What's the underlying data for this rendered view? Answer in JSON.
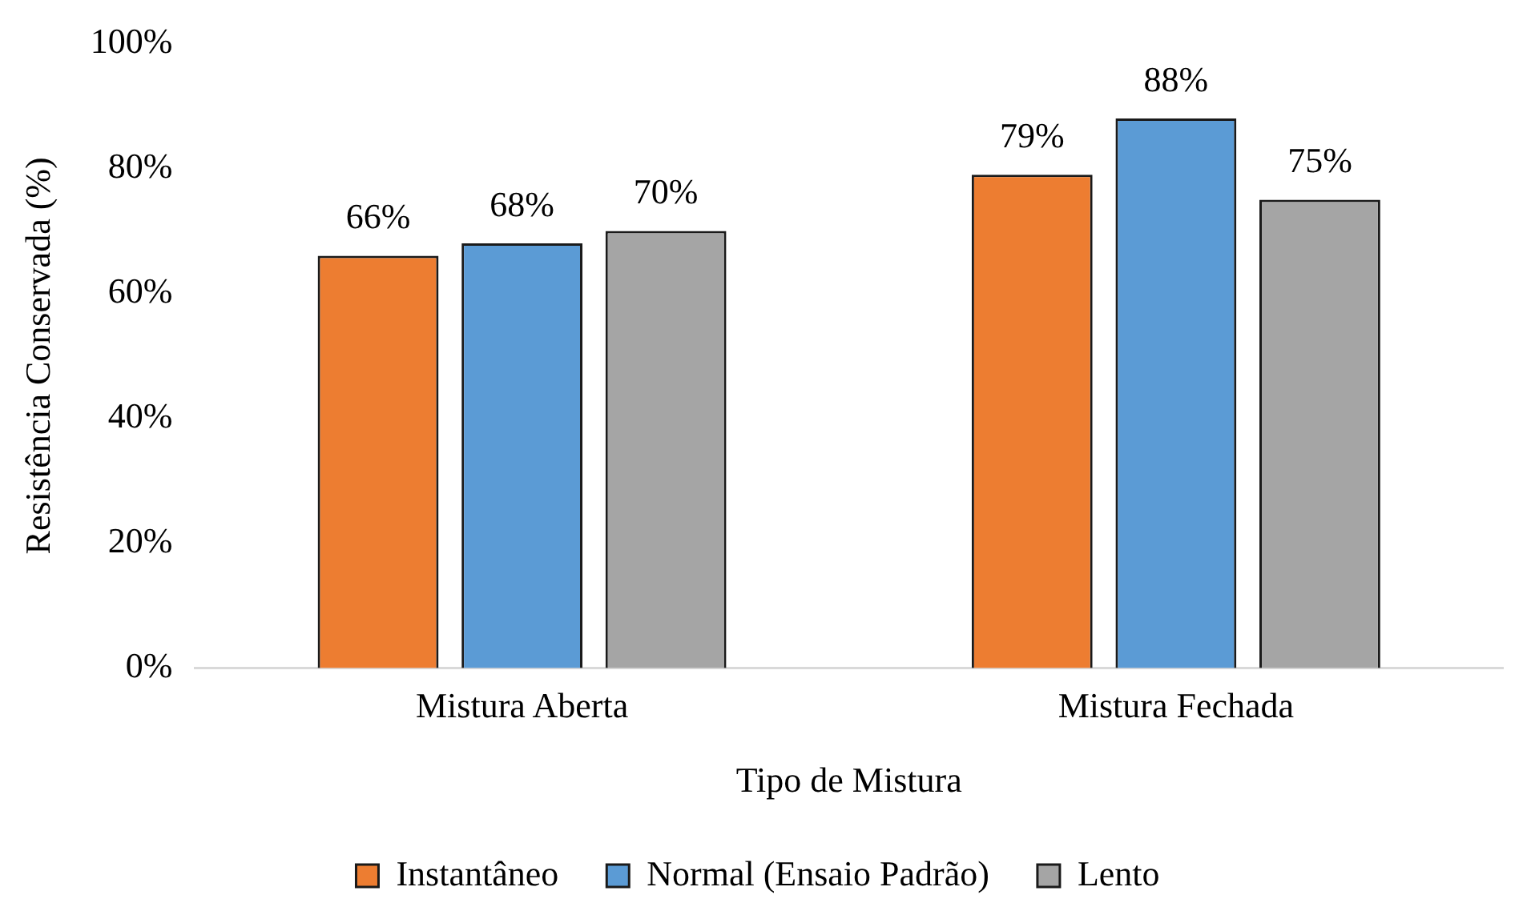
{
  "chart_data": {
    "type": "bar",
    "xlabel": "Tipo de Mistura",
    "ylabel": "Resistência Conservada (%)",
    "categories": [
      "Mistura Aberta",
      "Mistura Fechada"
    ],
    "series": [
      {
        "name": "Instantâneo",
        "color": "#ed7d31",
        "values": [
          66,
          79
        ],
        "value_labels": [
          "66%",
          "79%"
        ]
      },
      {
        "name": "Normal (Ensaio Padrão)",
        "color": "#5b9bd5",
        "values": [
          68,
          88
        ],
        "value_labels": [
          "68%",
          "88%"
        ]
      },
      {
        "name": "Lento",
        "color": "#a5a5a5",
        "values": [
          70,
          75
        ],
        "value_labels": [
          "70%",
          "75%"
        ]
      }
    ],
    "ylim": [
      0,
      100
    ],
    "yticks": [
      {
        "value": 0,
        "label": "0%"
      },
      {
        "value": 20,
        "label": "20%"
      },
      {
        "value": 40,
        "label": "40%"
      },
      {
        "value": 60,
        "label": "60%"
      },
      {
        "value": 80,
        "label": "80%"
      },
      {
        "value": 100,
        "label": "100%"
      }
    ],
    "grid": false,
    "legend": "bottom"
  }
}
